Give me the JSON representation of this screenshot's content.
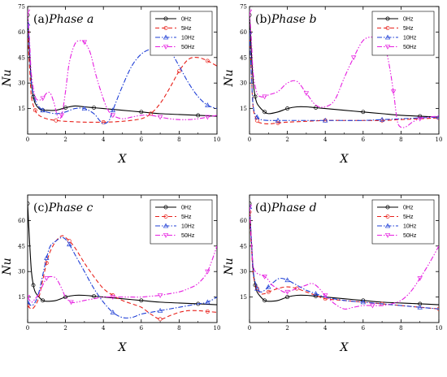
{
  "chart_data": [
    {
      "type": "line",
      "title": "(a)Phase a",
      "title_prefix": "(a)",
      "title_italic": "Phase a",
      "xlabel": "X",
      "ylabel": "Nu",
      "xlim": [
        0,
        10
      ],
      "ylim": [
        0,
        75
      ],
      "xticks": [
        0,
        2,
        4,
        6,
        8,
        10
      ],
      "yticks": [
        15,
        30,
        45,
        60,
        75
      ],
      "legend_position": "top-right",
      "series": [
        {
          "name": "0Hz",
          "color": "#000000",
          "dash": "solid",
          "marker": "circle",
          "x": [
            0,
            0.1,
            0.2,
            0.3,
            0.4,
            0.6,
            0.8,
            1.0,
            1.5,
            2.0,
            2.5,
            3.0,
            3.5,
            4.0,
            5.0,
            6.0,
            7.0,
            8.0,
            9.0,
            10.0
          ],
          "y": [
            70,
            48,
            30,
            22,
            18,
            15,
            14,
            14,
            14,
            15.5,
            16.5,
            16,
            15.5,
            15,
            14,
            13,
            12,
            11.5,
            11,
            10.5
          ]
        },
        {
          "name": "5Hz",
          "color": "#e8211b",
          "dash": "dash",
          "marker": "circle",
          "x": [
            0,
            0.1,
            0.2,
            0.4,
            0.6,
            1.0,
            1.5,
            2.0,
            3.0,
            4.0,
            5.0,
            6.0,
            6.5,
            7.0,
            7.5,
            8.0,
            8.5,
            9.0,
            9.5,
            10.0
          ],
          "y": [
            60,
            40,
            22,
            14,
            11,
            9,
            8,
            7.5,
            7,
            7,
            7.5,
            9,
            12,
            18,
            27,
            37,
            44,
            45,
            43,
            40
          ]
        },
        {
          "name": "10Hz",
          "color": "#1f3fd6",
          "dash": "dashdot",
          "marker": "triangle",
          "x": [
            0,
            0.1,
            0.2,
            0.4,
            0.6,
            0.8,
            1.0,
            1.5,
            2.0,
            2.5,
            3.0,
            3.5,
            3.8,
            4.0,
            4.3,
            4.5,
            5.0,
            5.5,
            6.0,
            6.5,
            7.0,
            7.5,
            8.0,
            8.5,
            9.0,
            9.5,
            10.0
          ],
          "y": [
            65,
            50,
            30,
            20,
            16,
            14,
            13,
            12,
            13,
            15,
            15,
            12,
            8,
            6,
            8,
            14,
            28,
            40,
            47,
            50,
            51,
            49,
            40,
            30,
            22,
            17,
            15
          ]
        },
        {
          "name": "50Hz",
          "color": "#e61ee0",
          "dash": "dashdotdot",
          "marker": "triangle-down",
          "x": [
            0,
            0.1,
            0.2,
            0.4,
            0.6,
            0.8,
            1.0,
            1.2,
            1.4,
            1.6,
            1.8,
            2.0,
            2.2,
            2.5,
            2.8,
            3.0,
            3.3,
            3.6,
            3.9,
            4.2,
            4.5,
            5.0,
            5.5,
            6.0,
            6.5,
            7.0,
            7.5,
            8.0,
            8.5,
            9.0,
            9.5,
            10.0
          ],
          "y": [
            72,
            55,
            35,
            22,
            20,
            21,
            24,
            24,
            18,
            10,
            11,
            25,
            42,
            53,
            55,
            54,
            48,
            35,
            24,
            15,
            11,
            9,
            10,
            11,
            11,
            10,
            9,
            8.5,
            8.5,
            9,
            10,
            11
          ]
        }
      ]
    },
    {
      "type": "line",
      "title": "(b)Phase b",
      "title_prefix": "(b)",
      "title_italic": "Phase b",
      "xlabel": "X",
      "ylabel": "Nu",
      "xlim": [
        0,
        10
      ],
      "ylim": [
        0,
        75
      ],
      "xticks": [
        0,
        2,
        4,
        6,
        8,
        10
      ],
      "yticks": [
        15,
        30,
        45,
        60,
        75
      ],
      "legend_position": "top-right",
      "series": [
        {
          "name": "0Hz",
          "color": "#000000",
          "dash": "solid",
          "marker": "circle",
          "x": [
            0,
            0.1,
            0.2,
            0.3,
            0.4,
            0.6,
            0.8,
            1.0,
            1.5,
            2.0,
            2.5,
            3.0,
            3.5,
            4.0,
            5.0,
            6.0,
            7.0,
            8.0,
            9.0,
            10.0
          ],
          "y": [
            70,
            48,
            30,
            22,
            18,
            15,
            13,
            12,
            13,
            15,
            16,
            16,
            15.5,
            15,
            14,
            13,
            12,
            11,
            10.5,
            10
          ]
        },
        {
          "name": "5Hz",
          "color": "#e8211b",
          "dash": "dash",
          "marker": "circle",
          "x": [
            0,
            0.1,
            0.2,
            0.4,
            0.6,
            1.0,
            1.5,
            2.0,
            3.0,
            4.0,
            5.0,
            6.0,
            7.0,
            8.0,
            9.0,
            10.0
          ],
          "y": [
            60,
            35,
            15,
            8,
            6.5,
            6,
            6.5,
            7,
            7.5,
            8,
            8,
            8,
            8,
            8.5,
            9,
            9.5
          ]
        },
        {
          "name": "10Hz",
          "color": "#1f3fd6",
          "dash": "dashdot",
          "marker": "triangle",
          "x": [
            0,
            0.1,
            0.2,
            0.4,
            0.6,
            1.0,
            1.5,
            2.0,
            3.0,
            4.0,
            5.0,
            6.0,
            7.0,
            8.0,
            9.0,
            10.0
          ],
          "y": [
            60,
            35,
            16,
            10,
            8.5,
            8,
            8,
            8,
            8,
            8,
            8,
            8,
            8.5,
            9,
            9.5,
            10
          ]
        },
        {
          "name": "50Hz",
          "color": "#e61ee0",
          "dash": "dashdotdot",
          "marker": "triangle-down",
          "x": [
            0,
            0.1,
            0.2,
            0.4,
            0.6,
            0.8,
            1.0,
            1.5,
            2.0,
            2.5,
            3.0,
            3.5,
            4.0,
            4.5,
            5.0,
            5.5,
            6.0,
            6.5,
            7.0,
            7.3,
            7.6,
            7.8,
            8.0,
            8.3,
            8.6,
            9.0,
            9.5,
            10.0
          ],
          "y": [
            72,
            55,
            35,
            24,
            22,
            22,
            23,
            25,
            30,
            31,
            24,
            17,
            16,
            20,
            33,
            45,
            55,
            57,
            55,
            45,
            25,
            8,
            4,
            4.5,
            7,
            9,
            10,
            10.5
          ]
        }
      ]
    },
    {
      "type": "line",
      "title": "(c)Phase c",
      "title_prefix": "(c)",
      "title_italic": "Phase c",
      "xlabel": "X",
      "ylabel": "Nu",
      "xlim": [
        0,
        10
      ],
      "ylim": [
        0,
        75
      ],
      "xticks": [
        0,
        2,
        4,
        6,
        8,
        10
      ],
      "yticks": [
        15,
        30,
        45,
        60
      ],
      "legend_position": "top-right",
      "series": [
        {
          "name": "0Hz",
          "color": "#000000",
          "dash": "solid",
          "marker": "circle",
          "x": [
            0,
            0.1,
            0.2,
            0.3,
            0.4,
            0.6,
            0.8,
            1.0,
            1.5,
            2.0,
            2.5,
            3.0,
            3.5,
            4.0,
            5.0,
            6.0,
            7.0,
            8.0,
            9.0,
            10.0
          ],
          "y": [
            70,
            48,
            30,
            22,
            18,
            15,
            13,
            12.5,
            13,
            15,
            16,
            16,
            15.5,
            15,
            14,
            13,
            12,
            11.5,
            11,
            10.5
          ]
        },
        {
          "name": "5Hz",
          "color": "#e8211b",
          "dash": "dash",
          "marker": "circle",
          "x": [
            0,
            0.2,
            0.4,
            0.6,
            0.8,
            1.0,
            1.2,
            1.5,
            1.8,
            2.0,
            2.2,
            2.5,
            3.0,
            3.5,
            4.0,
            4.5,
            5.0,
            5.5,
            6.0,
            6.5,
            7.0,
            7.5,
            8.0,
            8.5,
            9.0,
            9.5,
            10.0
          ],
          "y": [
            10,
            8,
            10,
            15,
            25,
            35,
            42,
            48,
            51,
            50,
            48,
            44,
            35,
            27,
            20,
            16,
            13,
            11,
            9,
            5,
            2,
            4,
            6,
            7,
            7,
            6.5,
            6
          ]
        },
        {
          "name": "10Hz",
          "color": "#1f3fd6",
          "dash": "dashdot",
          "marker": "triangle",
          "x": [
            0,
            0.2,
            0.4,
            0.6,
            0.8,
            1.0,
            1.2,
            1.5,
            1.8,
            2.0,
            2.2,
            2.5,
            3.0,
            3.5,
            4.0,
            4.5,
            5.0,
            5.5,
            6.0,
            6.5,
            7.0,
            7.5,
            8.0,
            8.5,
            9.0,
            9.5,
            10.0
          ],
          "y": [
            12,
            10,
            12,
            18,
            28,
            38,
            45,
            48,
            50,
            49,
            46,
            40,
            30,
            20,
            12,
            6,
            3,
            3,
            5,
            6,
            7,
            8,
            9,
            10,
            11,
            12,
            15
          ]
        },
        {
          "name": "50Hz",
          "color": "#e61ee0",
          "dash": "dashdotdot",
          "marker": "triangle-down",
          "x": [
            0,
            0.2,
            0.4,
            0.6,
            0.8,
            1.0,
            1.2,
            1.5,
            1.8,
            2.0,
            2.3,
            2.6,
            3.0,
            3.5,
            4.0,
            4.5,
            5.0,
            5.5,
            6.0,
            6.5,
            7.0,
            7.5,
            8.0,
            8.5,
            9.0,
            9.5,
            10.0
          ],
          "y": [
            15,
            12,
            14,
            17,
            22,
            26,
            27,
            26,
            20,
            15,
            12,
            12,
            13,
            14,
            15,
            15,
            15,
            15,
            15,
            15.5,
            16,
            17,
            18,
            20,
            23,
            30,
            45
          ]
        }
      ]
    },
    {
      "type": "line",
      "title": "(d)Phase d",
      "title_prefix": "(d)",
      "title_italic": "Phase d",
      "xlabel": "X",
      "ylabel": "Nu",
      "xlim": [
        0,
        10
      ],
      "ylim": [
        0,
        75
      ],
      "xticks": [
        0,
        2,
        4,
        6,
        8,
        10
      ],
      "yticks": [
        15,
        30,
        45,
        60
      ],
      "legend_position": "top-right",
      "series": [
        {
          "name": "0Hz",
          "color": "#000000",
          "dash": "solid",
          "marker": "circle",
          "x": [
            0,
            0.1,
            0.2,
            0.3,
            0.4,
            0.6,
            0.8,
            1.0,
            1.5,
            2.0,
            2.5,
            3.0,
            3.5,
            4.0,
            5.0,
            6.0,
            7.0,
            8.0,
            9.0,
            10.0
          ],
          "y": [
            70,
            48,
            30,
            22,
            18,
            15,
            13,
            12.5,
            13,
            15,
            16,
            16,
            15.5,
            15,
            14,
            13,
            12,
            11.5,
            11,
            10.5
          ]
        },
        {
          "name": "5Hz",
          "color": "#e8211b",
          "dash": "dash",
          "marker": "circle",
          "x": [
            0,
            0.1,
            0.2,
            0.4,
            0.6,
            0.8,
            1.0,
            1.5,
            2.0,
            2.5,
            3.0,
            3.5,
            4.0,
            5.0,
            6.0,
            7.0,
            8.0,
            9.0,
            10.0
          ],
          "y": [
            65,
            45,
            28,
            20,
            17,
            17,
            18,
            20,
            21,
            20,
            18,
            16,
            14,
            13,
            12,
            11,
            10,
            9,
            8
          ]
        },
        {
          "name": "10Hz",
          "color": "#1f3fd6",
          "dash": "dashdot",
          "marker": "triangle",
          "x": [
            0,
            0.1,
            0.2,
            0.4,
            0.6,
            0.8,
            1.0,
            1.3,
            1.6,
            2.0,
            2.5,
            3.0,
            3.5,
            4.0,
            5.0,
            6.0,
            7.0,
            8.0,
            9.0,
            10.0
          ],
          "y": [
            68,
            48,
            30,
            20,
            18,
            19,
            21,
            24,
            26,
            25,
            22,
            19,
            17,
            15,
            13,
            12,
            11,
            10,
            9,
            8
          ]
        },
        {
          "name": "50Hz",
          "color": "#e61ee0",
          "dash": "dashdotdot",
          "marker": "triangle-down",
          "x": [
            0,
            0.1,
            0.2,
            0.4,
            0.6,
            0.8,
            1.0,
            1.2,
            1.5,
            1.8,
            2.0,
            2.5,
            3.0,
            3.3,
            3.6,
            4.0,
            4.5,
            5.0,
            5.5,
            6.0,
            6.5,
            7.0,
            7.5,
            8.0,
            8.5,
            9.0,
            9.5,
            10.0
          ],
          "y": [
            68,
            48,
            33,
            29,
            28,
            27,
            25,
            22,
            20,
            18,
            18,
            20,
            22,
            23,
            21,
            16,
            11,
            8,
            9,
            10,
            10,
            10,
            11,
            13,
            18,
            26,
            35,
            45
          ]
        }
      ]
    }
  ]
}
